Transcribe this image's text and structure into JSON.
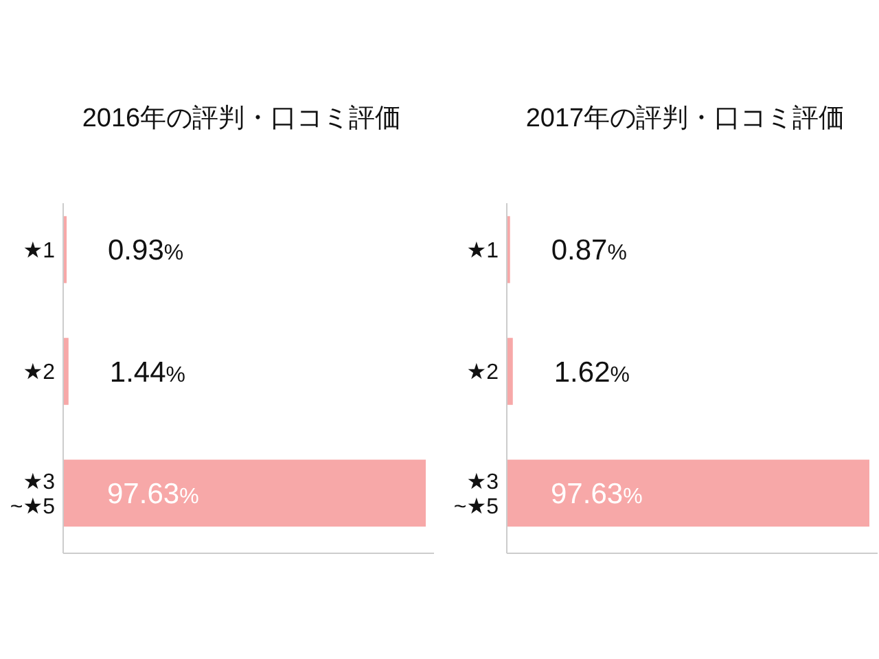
{
  "chart_data": [
    {
      "type": "bar",
      "orientation": "horizontal",
      "title": "2016年の評判・口コミ評価",
      "categories": [
        "★1",
        "★2",
        "★3\n~★5"
      ],
      "values": [
        0.93,
        1.44,
        97.63
      ],
      "value_labels": [
        "0.93%",
        "1.44%",
        "97.63%"
      ],
      "color": "#f7a8a8"
    },
    {
      "type": "bar",
      "orientation": "horizontal",
      "title": "2017年の評判・口コミ評価",
      "categories": [
        "★1",
        "★2",
        "★3\n~★5"
      ],
      "values": [
        0.87,
        1.62,
        97.63
      ],
      "value_labels": [
        "0.87%",
        "1.62%",
        "97.63%"
      ],
      "color": "#f7a8a8"
    }
  ]
}
